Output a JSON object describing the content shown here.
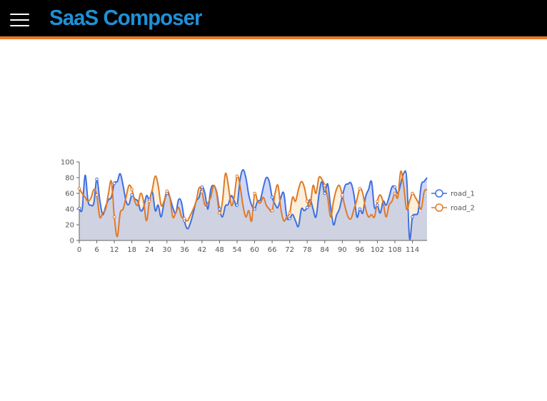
{
  "app": {
    "brand": "SaaS Composer",
    "menu_icon": "hamburger-menu-icon"
  },
  "colors": {
    "topbar": "#000000",
    "accent": "#e8782a",
    "brand": "#1e90d6",
    "road_1": "#3f6fe0",
    "road_2": "#e07a26",
    "fill": "#cfd2e0"
  },
  "chart_data": {
    "type": "line",
    "smooth": true,
    "area_between_series": true,
    "xlim": [
      0,
      119
    ],
    "ylim": [
      0,
      100
    ],
    "x_ticks": [
      "0",
      "6",
      "12",
      "18",
      "24",
      "30",
      "36",
      "42",
      "48",
      "54",
      "60",
      "66",
      "72",
      "78",
      "84",
      "90",
      "96",
      "102",
      "108",
      "114"
    ],
    "y_ticks": [
      "0",
      "20",
      "40",
      "60",
      "80",
      "100"
    ],
    "legend_position": "right",
    "series": [
      {
        "name": "road_1",
        "values": [
          41,
          40,
          83,
          50,
          45,
          48,
          78,
          52,
          33,
          43,
          52,
          55,
          73,
          75,
          85,
          70,
          50,
          46,
          58,
          53,
          50,
          38,
          42,
          57,
          52,
          62,
          38,
          45,
          30,
          48,
          60,
          55,
          42,
          35,
          52,
          48,
          25,
          15,
          22,
          35,
          50,
          55,
          68,
          60,
          40,
          65,
          70,
          62,
          40,
          30,
          44,
          46,
          57,
          51,
          45,
          77,
          90,
          80,
          58,
          45,
          40,
          50,
          52,
          68,
          80,
          75,
          55,
          46,
          42,
          55,
          60,
          30,
          28,
          33,
          25,
          18,
          40,
          38,
          42,
          52,
          40,
          30,
          58,
          75,
          60,
          72,
          43,
          20,
          32,
          40,
          56,
          70,
          72,
          73,
          58,
          30,
          40,
          35,
          56,
          65,
          75,
          42,
          45,
          35,
          50,
          45,
          55,
          68,
          68,
          60,
          72,
          85,
          80,
          3,
          30,
          33,
          37,
          70,
          75,
          80
        ]
      },
      {
        "name": "road_2",
        "values": [
          66,
          60,
          55,
          50,
          54,
          65,
          58,
          30,
          35,
          40,
          60,
          75,
          30,
          5,
          35,
          40,
          55,
          70,
          65,
          50,
          45,
          60,
          50,
          25,
          50,
          65,
          82,
          70,
          45,
          50,
          63,
          55,
          30,
          35,
          42,
          30,
          28,
          25,
          32,
          40,
          50,
          67,
          62,
          45,
          48,
          55,
          70,
          60,
          35,
          50,
          85,
          70,
          45,
          55,
          82,
          70,
          45,
          30,
          38,
          25,
          60,
          50,
          48,
          55,
          45,
          40,
          38,
          60,
          70,
          40,
          25,
          30,
          35,
          55,
          50,
          65,
          75,
          68,
          50,
          45,
          70,
          60,
          80,
          78,
          70,
          55,
          30,
          50,
          65,
          70,
          58,
          42,
          30,
          28,
          40,
          52,
          66,
          60,
          40,
          30,
          33,
          30,
          50,
          58,
          48,
          30,
          45,
          50,
          60,
          55,
          88,
          70,
          40,
          50,
          60,
          55,
          48,
          40,
          62,
          65
        ]
      }
    ]
  }
}
